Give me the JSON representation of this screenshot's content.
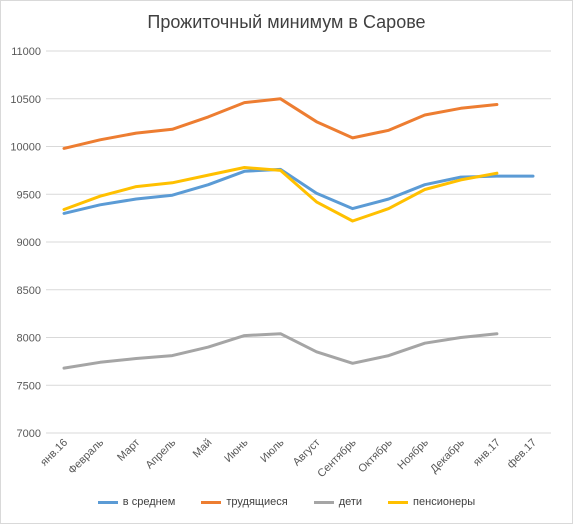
{
  "chart_data": {
    "type": "line",
    "title": "Прожиточный минимум в Сарове",
    "xlabel": "",
    "ylabel": "",
    "ylim": [
      7000,
      11000
    ],
    "yticks": [
      7000,
      7500,
      8000,
      8500,
      9000,
      9500,
      10000,
      10500,
      11000
    ],
    "grid": true,
    "legend_position": "bottom",
    "categories": [
      "янв.16",
      "Февраль",
      "Март",
      "Апрель",
      "Май",
      "Июнь",
      "Июль",
      "Август",
      "Сентябрь",
      "Октябрь",
      "Ноябрь",
      "Декабрь",
      "янв.17",
      "фев.17"
    ],
    "series": [
      {
        "name": "в среднем",
        "color": "#5b9bd5",
        "values": [
          9300,
          9390,
          9450,
          9490,
          9600,
          9740,
          9760,
          9510,
          9350,
          9450,
          9600,
          9680,
          9690,
          9690
        ]
      },
      {
        "name": "трудящиеся",
        "color": "#ed7d31",
        "values": [
          9980,
          10070,
          10140,
          10180,
          10310,
          10460,
          10500,
          10260,
          10090,
          10170,
          10330,
          10400,
          10440,
          null
        ]
      },
      {
        "name": "дети",
        "color": "#a5a5a5",
        "values": [
          7680,
          7740,
          7780,
          7810,
          7900,
          8020,
          8040,
          7850,
          7730,
          7810,
          7940,
          8000,
          8040,
          null
        ]
      },
      {
        "name": "пенсионеры",
        "color": "#ffc000",
        "values": [
          9340,
          9480,
          9580,
          9620,
          9700,
          9780,
          9750,
          9420,
          9220,
          9350,
          9550,
          9650,
          9720,
          null
        ]
      }
    ]
  }
}
